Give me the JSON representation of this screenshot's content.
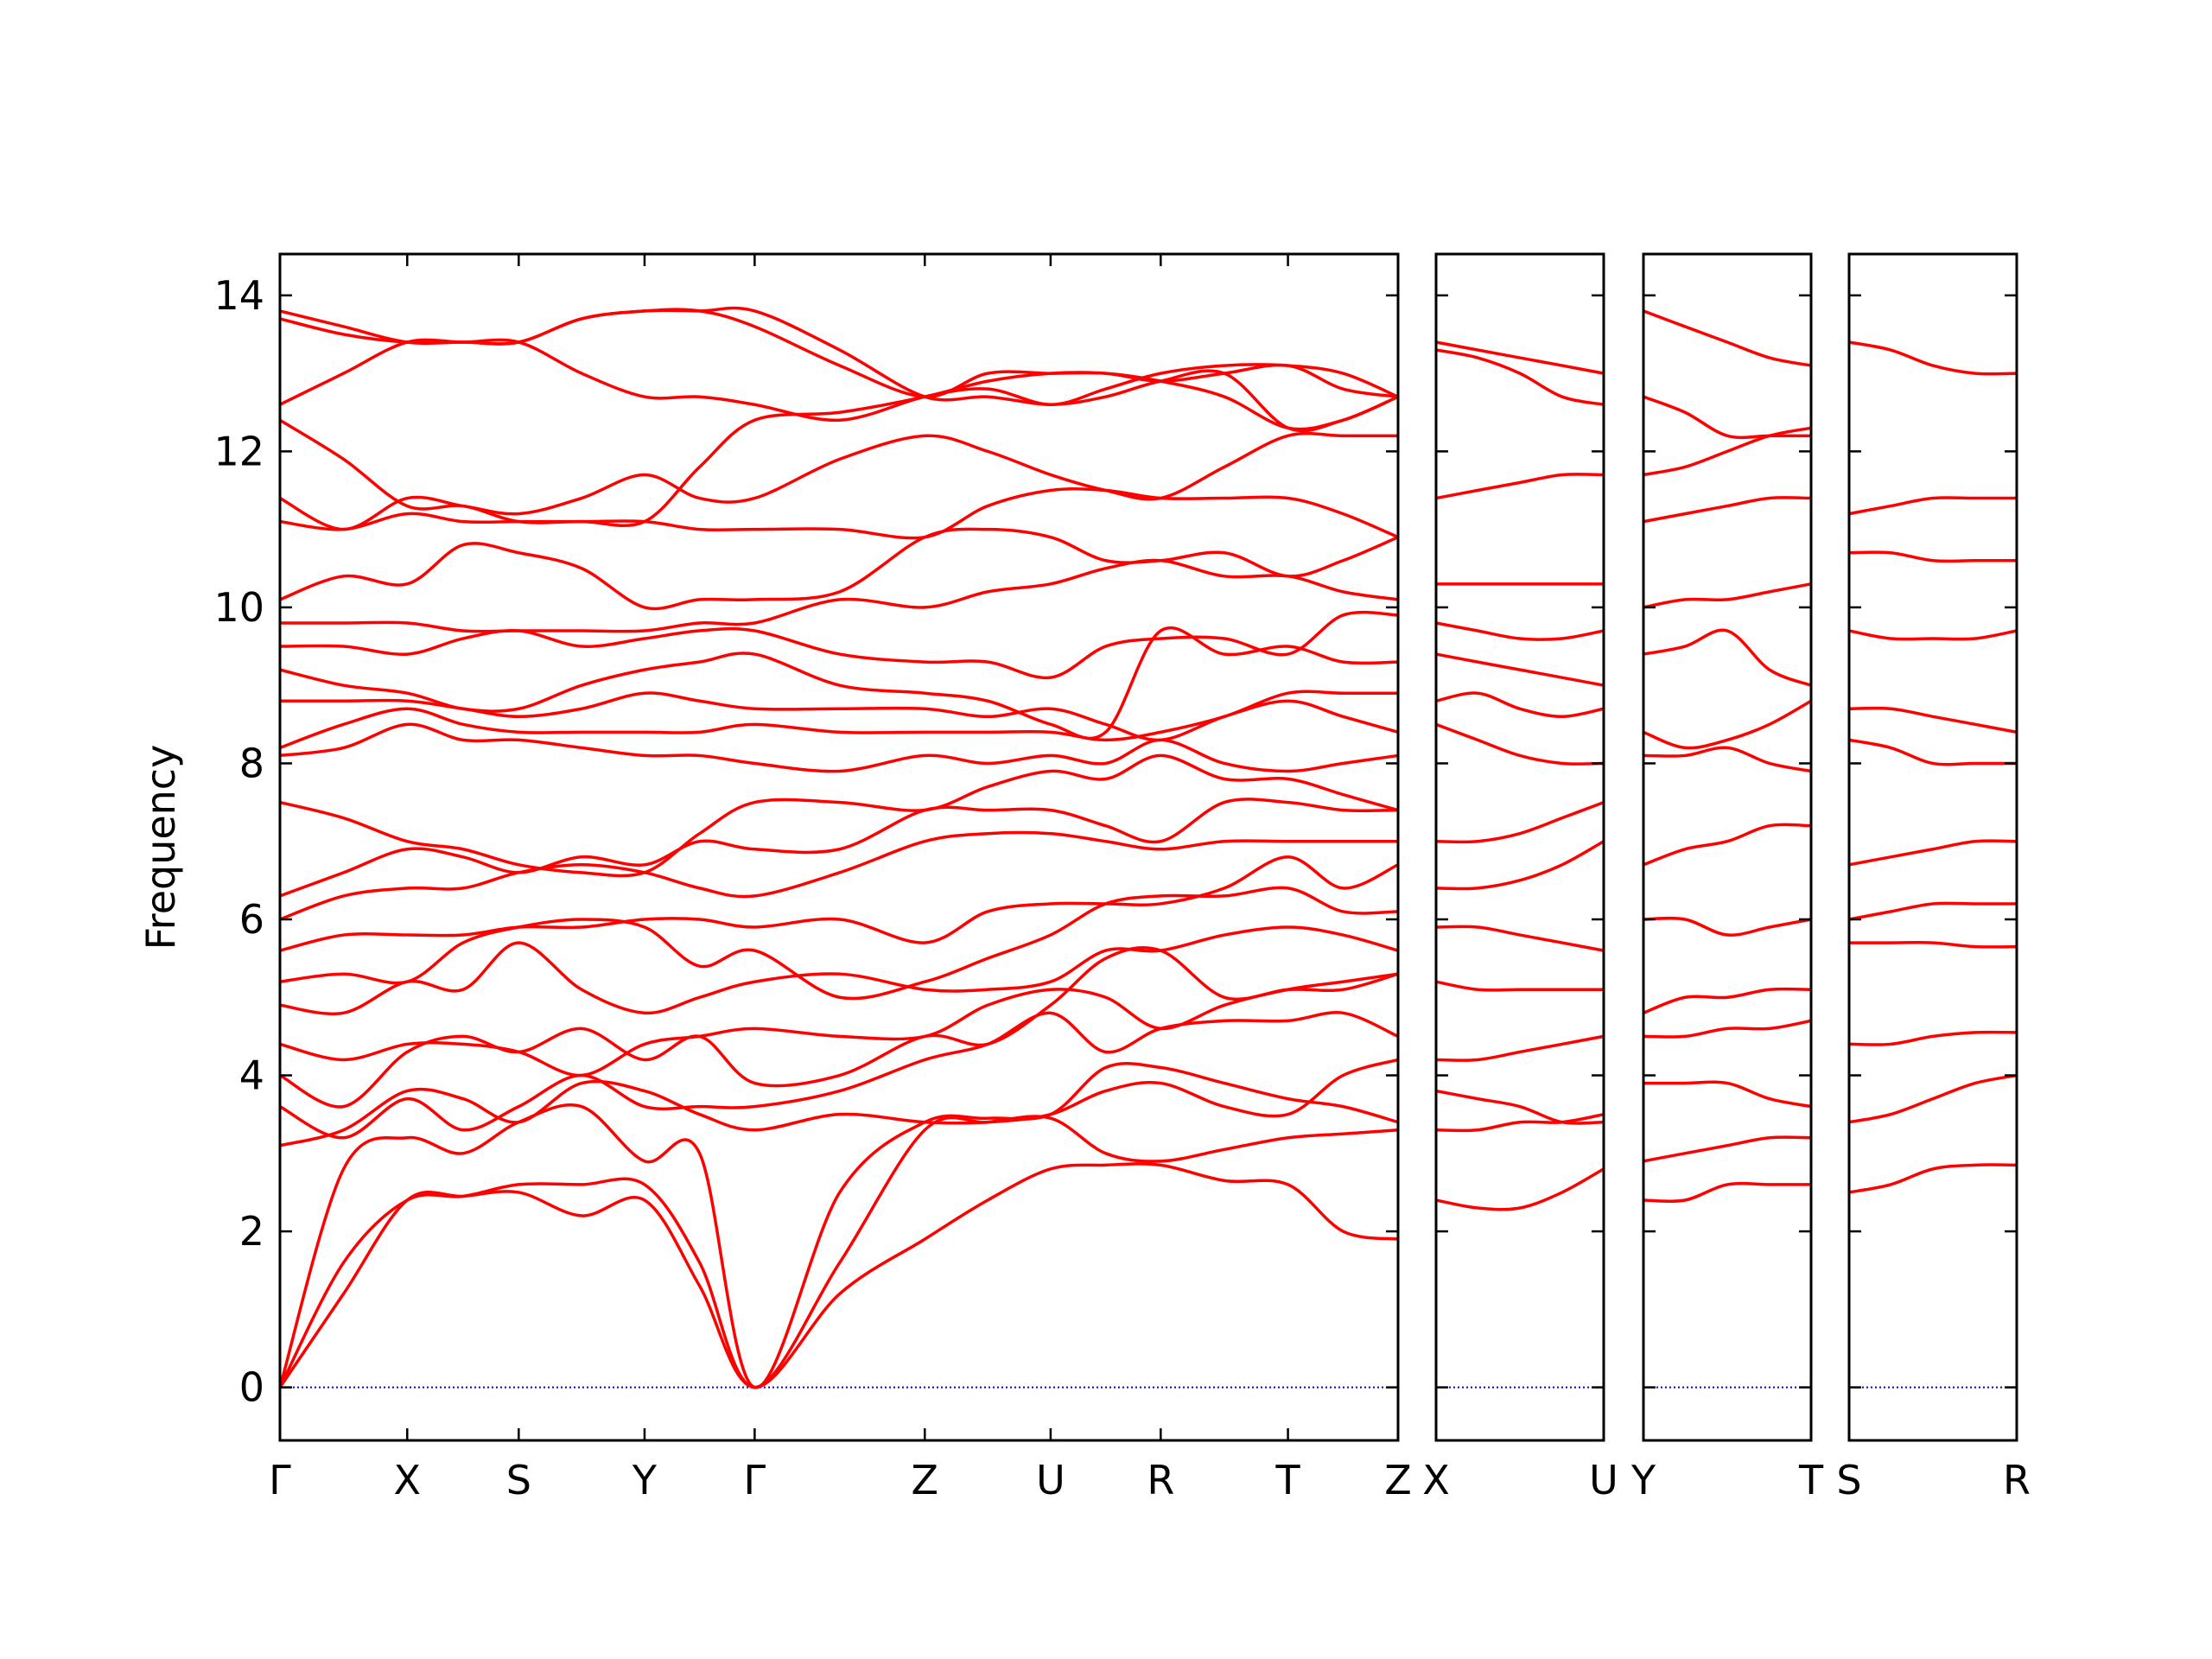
{
  "chart_data": [
    {
      "type": "line",
      "ylabel": "Frequency",
      "color": "#ff0000",
      "zero_line_color": "#0000ff",
      "xlim": [
        0,
        7.82
      ],
      "ylim": [
        -0.68,
        14.53
      ],
      "yticks": [
        0,
        2,
        4,
        6,
        8,
        10,
        12,
        14
      ],
      "xticks": [
        {
          "value": 0,
          "label": "Γ"
        },
        {
          "value": 0.89,
          "label": "X"
        },
        {
          "value": 1.67,
          "label": "S"
        },
        {
          "value": 2.55,
          "label": "Y"
        },
        {
          "value": 3.32,
          "label": "Γ"
        },
        {
          "value": 4.51,
          "label": "Z"
        },
        {
          "value": 5.39,
          "label": "U"
        },
        {
          "value": 6.16,
          "label": "R"
        },
        {
          "value": 7.05,
          "label": "T"
        },
        {
          "value": 7.82,
          "label": "Z"
        }
      ],
      "x": [
        0,
        0.445,
        0.89,
        1.28,
        1.67,
        2.11,
        2.55,
        2.935,
        3.32,
        3.915,
        4.51,
        4.95,
        5.39,
        5.775,
        6.16,
        6.605,
        7.05,
        7.435,
        7.82
      ],
      "series": [
        {
          "values": [
            0,
            1.2,
            2.4,
            2.45,
            2.5,
            2.2,
            2.4,
            1.3,
            0,
            1.2,
            1.9,
            2.4,
            2.8,
            2.85,
            2.85,
            2.65,
            2.6,
            2.0,
            1.9
          ]
        },
        {
          "values": [
            0,
            1.6,
            2.4,
            2.45,
            2.6,
            2.6,
            2.6,
            1.6,
            0,
            1.6,
            3.3,
            3.4,
            3.45,
            3.0,
            2.9,
            3.05,
            3.2,
            3.25,
            3.3
          ]
        },
        {
          "values": [
            0,
            2.8,
            3.2,
            3.0,
            3.4,
            3.6,
            2.9,
            3.0,
            0,
            2.5,
            3.4,
            3.45,
            3.5,
            4.1,
            4.1,
            3.9,
            3.7,
            3.6,
            3.4
          ]
        },
        {
          "values": [
            3.1,
            3.3,
            3.8,
            3.7,
            3.4,
            3.9,
            3.8,
            3.5,
            3.3,
            3.5,
            3.4,
            3.4,
            3.5,
            3.8,
            3.9,
            3.6,
            3.5,
            4.0,
            4.2
          ]
        },
        {
          "values": [
            3.6,
            3.2,
            3.7,
            3.3,
            3.6,
            4.0,
            3.6,
            3.6,
            3.6,
            3.8,
            4.2,
            4.4,
            4.8,
            4.3,
            4.6,
            4.7,
            4.7,
            4.8,
            4.5
          ]
        },
        {
          "values": [
            4.0,
            3.6,
            4.3,
            4.5,
            4.3,
            4.6,
            4.2,
            4.5,
            3.9,
            4.0,
            4.5,
            4.4,
            4.9,
            5.5,
            5.6,
            5.0,
            5.1,
            5.1,
            5.3
          ]
        },
        {
          "values": [
            4.4,
            4.2,
            4.4,
            4.4,
            4.3,
            4.0,
            4.4,
            4.5,
            4.6,
            4.5,
            4.5,
            4.9,
            5.1,
            5.0,
            4.6,
            4.9,
            5.1,
            5.2,
            5.3
          ]
        },
        {
          "values": [
            4.9,
            4.8,
            5.2,
            5.1,
            5.7,
            5.1,
            4.8,
            5.0,
            5.2,
            5.3,
            5.1,
            5.1,
            5.2,
            5.6,
            5.6,
            5.8,
            5.9,
            5.8,
            5.6
          ]
        },
        {
          "values": [
            5.2,
            5.3,
            5.2,
            5.7,
            5.9,
            6.0,
            5.9,
            5.4,
            5.6,
            5.0,
            5.2,
            5.5,
            5.8,
            6.2,
            6.3,
            6.3,
            6.4,
            6.1,
            6.1
          ]
        },
        {
          "values": [
            5.6,
            5.8,
            5.8,
            5.8,
            5.9,
            5.9,
            6.0,
            6.0,
            5.9,
            6.0,
            5.7,
            6.1,
            6.2,
            6.2,
            6.2,
            6.4,
            6.8,
            6.4,
            6.7
          ]
        },
        {
          "values": [
            6.0,
            6.3,
            6.4,
            6.4,
            6.6,
            6.7,
            6.6,
            6.4,
            6.3,
            6.6,
            7.0,
            7.1,
            7.1,
            7.0,
            6.9,
            7.0,
            7.0,
            7.0,
            7.0
          ]
        },
        {
          "values": [
            6.3,
            6.6,
            6.9,
            6.8,
            6.6,
            6.8,
            6.7,
            7.0,
            6.9,
            6.9,
            7.4,
            7.4,
            7.4,
            7.2,
            7.0,
            7.5,
            7.5,
            7.4,
            7.4
          ]
        },
        {
          "values": [
            7.5,
            7.3,
            7.0,
            6.9,
            6.7,
            6.6,
            6.6,
            7.1,
            7.5,
            7.5,
            7.4,
            7.7,
            7.9,
            7.8,
            8.1,
            7.8,
            7.8,
            7.6,
            7.4
          ]
        },
        {
          "values": [
            8.1,
            8.2,
            8.5,
            8.3,
            8.3,
            8.2,
            8.1,
            8.1,
            8.0,
            7.9,
            8.1,
            8.0,
            8.1,
            8.0,
            8.3,
            8.0,
            7.9,
            8.0,
            8.1
          ]
        },
        {
          "values": [
            8.2,
            8.5,
            8.7,
            8.5,
            8.4,
            8.4,
            8.4,
            8.4,
            8.5,
            8.4,
            8.4,
            8.4,
            8.4,
            8.3,
            8.4,
            8.6,
            8.9,
            8.9,
            8.9
          ]
        },
        {
          "values": [
            8.8,
            8.8,
            8.8,
            8.7,
            8.6,
            8.7,
            8.9,
            8.8,
            8.7,
            8.7,
            8.7,
            8.6,
            8.7,
            8.5,
            8.3,
            8.6,
            8.8,
            8.6,
            8.4
          ]
        },
        {
          "values": [
            9.2,
            9.0,
            8.9,
            8.7,
            8.7,
            9.0,
            9.2,
            9.3,
            9.4,
            9.0,
            8.9,
            8.8,
            8.5,
            8.4,
            9.7,
            9.4,
            9.5,
            9.3,
            9.3
          ]
        },
        {
          "values": [
            9.5,
            9.5,
            9.4,
            9.6,
            9.7,
            9.5,
            9.6,
            9.7,
            9.7,
            9.4,
            9.3,
            9.3,
            9.1,
            9.5,
            9.6,
            9.6,
            9.4,
            9.9,
            9.9
          ]
        },
        {
          "values": [
            9.8,
            9.8,
            9.8,
            9.7,
            9.7,
            9.7,
            9.7,
            9.8,
            9.8,
            10.1,
            10.0,
            10.2,
            10.3,
            10.5,
            10.6,
            10.4,
            10.4,
            10.2,
            10.1
          ]
        },
        {
          "values": [
            10.1,
            10.4,
            10.3,
            10.8,
            10.7,
            10.5,
            10.0,
            10.1,
            10.1,
            10.2,
            10.9,
            11.0,
            10.9,
            10.6,
            10.6,
            10.7,
            10.4,
            10.6,
            10.9
          ]
        },
        {
          "values": [
            11.1,
            11.0,
            11.2,
            11.1,
            11.1,
            11.1,
            11.1,
            11.0,
            11.0,
            11.0,
            10.9,
            11.3,
            11.5,
            11.5,
            11.4,
            11.4,
            11.4,
            11.2,
            10.9
          ]
        },
        {
          "values": [
            11.4,
            11.0,
            11.4,
            11.3,
            11.2,
            11.4,
            11.7,
            11.4,
            11.4,
            11.9,
            12.2,
            12.0,
            11.7,
            11.5,
            11.4,
            11.8,
            12.2,
            12.2,
            12.2
          ]
        },
        {
          "values": [
            12.4,
            11.9,
            11.3,
            11.3,
            11.1,
            11.1,
            11.1,
            11.8,
            12.4,
            12.5,
            12.7,
            12.9,
            13.0,
            13.0,
            12.9,
            12.7,
            12.3,
            12.4,
            12.7
          ]
        },
        {
          "values": [
            12.6,
            13.0,
            13.4,
            13.4,
            13.4,
            13.0,
            12.7,
            12.7,
            12.6,
            12.4,
            12.7,
            12.8,
            12.6,
            12.8,
            13.0,
            13.1,
            13.1,
            13.0,
            12.7
          ]
        },
        {
          "values": [
            13.7,
            13.5,
            13.4,
            13.4,
            13.4,
            13.7,
            13.8,
            13.8,
            13.6,
            13.1,
            12.7,
            13.0,
            13.0,
            13.0,
            12.9,
            13.0,
            13.1,
            12.8,
            12.7
          ]
        },
        {
          "values": [
            13.8,
            13.6,
            13.4,
            13.4,
            13.4,
            13.7,
            13.8,
            13.8,
            13.8,
            13.3,
            12.7,
            12.7,
            12.6,
            12.7,
            12.9,
            13.0,
            12.3,
            12.4,
            12.7
          ]
        }
      ]
    },
    {
      "type": "line",
      "color": "#ff0000",
      "zero_line_color": "#0000ff",
      "ytick_labels": false,
      "xlim": [
        0,
        1.17
      ],
      "ylim": [
        -0.68,
        14.53
      ],
      "yticks": [
        0,
        2,
        4,
        6,
        8,
        10,
        12,
        14
      ],
      "xticks": [
        {
          "value": 0,
          "label": "X"
        },
        {
          "value": 1.17,
          "label": "U"
        }
      ],
      "x": [
        0,
        0.29,
        0.585,
        0.88,
        1.17
      ],
      "series": [
        {
          "values": [
            2.4,
            2.3,
            2.3,
            2.5,
            2.8
          ]
        },
        {
          "values": [
            3.3,
            3.3,
            3.4,
            3.4,
            3.5
          ]
        },
        {
          "values": [
            3.8,
            3.7,
            3.6,
            3.4,
            3.4
          ]
        },
        {
          "values": [
            4.2,
            4.2,
            4.3,
            4.4,
            4.5
          ]
        },
        {
          "values": [
            5.2,
            5.1,
            5.1,
            5.1,
            5.1
          ]
        },
        {
          "values": [
            5.9,
            5.9,
            5.8,
            5.7,
            5.6
          ]
        },
        {
          "values": [
            6.4,
            6.4,
            6.5,
            6.7,
            7.0
          ]
        },
        {
          "values": [
            7.0,
            7.0,
            7.1,
            7.3,
            7.5
          ]
        },
        {
          "values": [
            8.5,
            8.3,
            8.1,
            8.0,
            8.0
          ]
        },
        {
          "values": [
            8.8,
            8.9,
            8.7,
            8.6,
            8.7
          ]
        },
        {
          "values": [
            9.4,
            9.3,
            9.2,
            9.1,
            9.0
          ]
        },
        {
          "values": [
            9.8,
            9.7,
            9.6,
            9.6,
            9.7
          ]
        },
        {
          "values": [
            10.3,
            10.3,
            10.3,
            10.3,
            10.3
          ]
        },
        {
          "values": [
            11.4,
            11.5,
            11.6,
            11.7,
            11.7
          ]
        },
        {
          "values": [
            13.4,
            13.3,
            13.2,
            13.1,
            13.0
          ]
        },
        {
          "values": [
            13.3,
            13.2,
            13.0,
            12.7,
            12.6
          ]
        }
      ]
    },
    {
      "type": "line",
      "color": "#ff0000",
      "zero_line_color": "#0000ff",
      "ytick_labels": false,
      "xlim": [
        0,
        1.17
      ],
      "ylim": [
        -0.68,
        14.53
      ],
      "yticks": [
        0,
        2,
        4,
        6,
        8,
        10,
        12,
        14
      ],
      "xticks": [
        {
          "value": 0,
          "label": "Y"
        },
        {
          "value": 1.17,
          "label": "T"
        }
      ],
      "x": [
        0,
        0.29,
        0.585,
        0.88,
        1.17
      ],
      "series": [
        {
          "values": [
            2.4,
            2.4,
            2.6,
            2.6,
            2.6
          ]
        },
        {
          "values": [
            2.9,
            3.0,
            3.1,
            3.2,
            3.2
          ]
        },
        {
          "values": [
            3.9,
            3.9,
            3.9,
            3.7,
            3.6
          ]
        },
        {
          "values": [
            4.5,
            4.5,
            4.6,
            4.6,
            4.7
          ]
        },
        {
          "values": [
            4.8,
            5.0,
            5.0,
            5.1,
            5.1
          ]
        },
        {
          "values": [
            6.0,
            6.0,
            5.8,
            5.9,
            6.0
          ]
        },
        {
          "values": [
            6.7,
            6.9,
            7.0,
            7.2,
            7.2
          ]
        },
        {
          "values": [
            8.1,
            8.1,
            8.2,
            8.0,
            7.9
          ]
        },
        {
          "values": [
            8.4,
            8.2,
            8.3,
            8.5,
            8.8
          ]
        },
        {
          "values": [
            9.4,
            9.5,
            9.7,
            9.2,
            9.0
          ]
        },
        {
          "values": [
            10.0,
            10.1,
            10.1,
            10.2,
            10.3
          ]
        },
        {
          "values": [
            11.1,
            11.2,
            11.3,
            11.4,
            11.4
          ]
        },
        {
          "values": [
            11.7,
            11.8,
            12.0,
            12.2,
            12.3
          ]
        },
        {
          "values": [
            12.7,
            12.5,
            12.2,
            12.2,
            12.2
          ]
        },
        {
          "values": [
            13.8,
            13.6,
            13.4,
            13.2,
            13.1
          ]
        }
      ]
    },
    {
      "type": "line",
      "color": "#ff0000",
      "zero_line_color": "#0000ff",
      "ytick_labels": false,
      "xlim": [
        0,
        1.17
      ],
      "ylim": [
        -0.68,
        14.53
      ],
      "yticks": [
        0,
        2,
        4,
        6,
        8,
        10,
        12,
        14
      ],
      "xticks": [
        {
          "value": 0,
          "label": "S"
        },
        {
          "value": 1.17,
          "label": "R"
        }
      ],
      "x": [
        0,
        0.29,
        0.585,
        0.88,
        1.17
      ],
      "series": [
        {
          "values": [
            2.5,
            2.6,
            2.8,
            2.85,
            2.85
          ]
        },
        {
          "values": [
            3.4,
            3.5,
            3.7,
            3.9,
            4.0
          ]
        },
        {
          "values": [
            4.4,
            4.4,
            4.5,
            4.55,
            4.55
          ]
        },
        {
          "values": [
            5.7,
            5.7,
            5.7,
            5.65,
            5.65
          ]
        },
        {
          "values": [
            6.0,
            6.1,
            6.2,
            6.2,
            6.2
          ]
        },
        {
          "values": [
            6.7,
            6.8,
            6.9,
            7.0,
            7.0
          ]
        },
        {
          "values": [
            8.3,
            8.2,
            8.0,
            8.0,
            8.0
          ]
        },
        {
          "values": [
            8.7,
            8.7,
            8.6,
            8.5,
            8.4
          ]
        },
        {
          "values": [
            9.7,
            9.6,
            9.6,
            9.6,
            9.7
          ]
        },
        {
          "values": [
            10.7,
            10.7,
            10.6,
            10.6,
            10.6
          ]
        },
        {
          "values": [
            11.2,
            11.3,
            11.4,
            11.4,
            11.4
          ]
        },
        {
          "values": [
            13.4,
            13.3,
            13.1,
            13.0,
            13.0
          ]
        }
      ]
    }
  ]
}
